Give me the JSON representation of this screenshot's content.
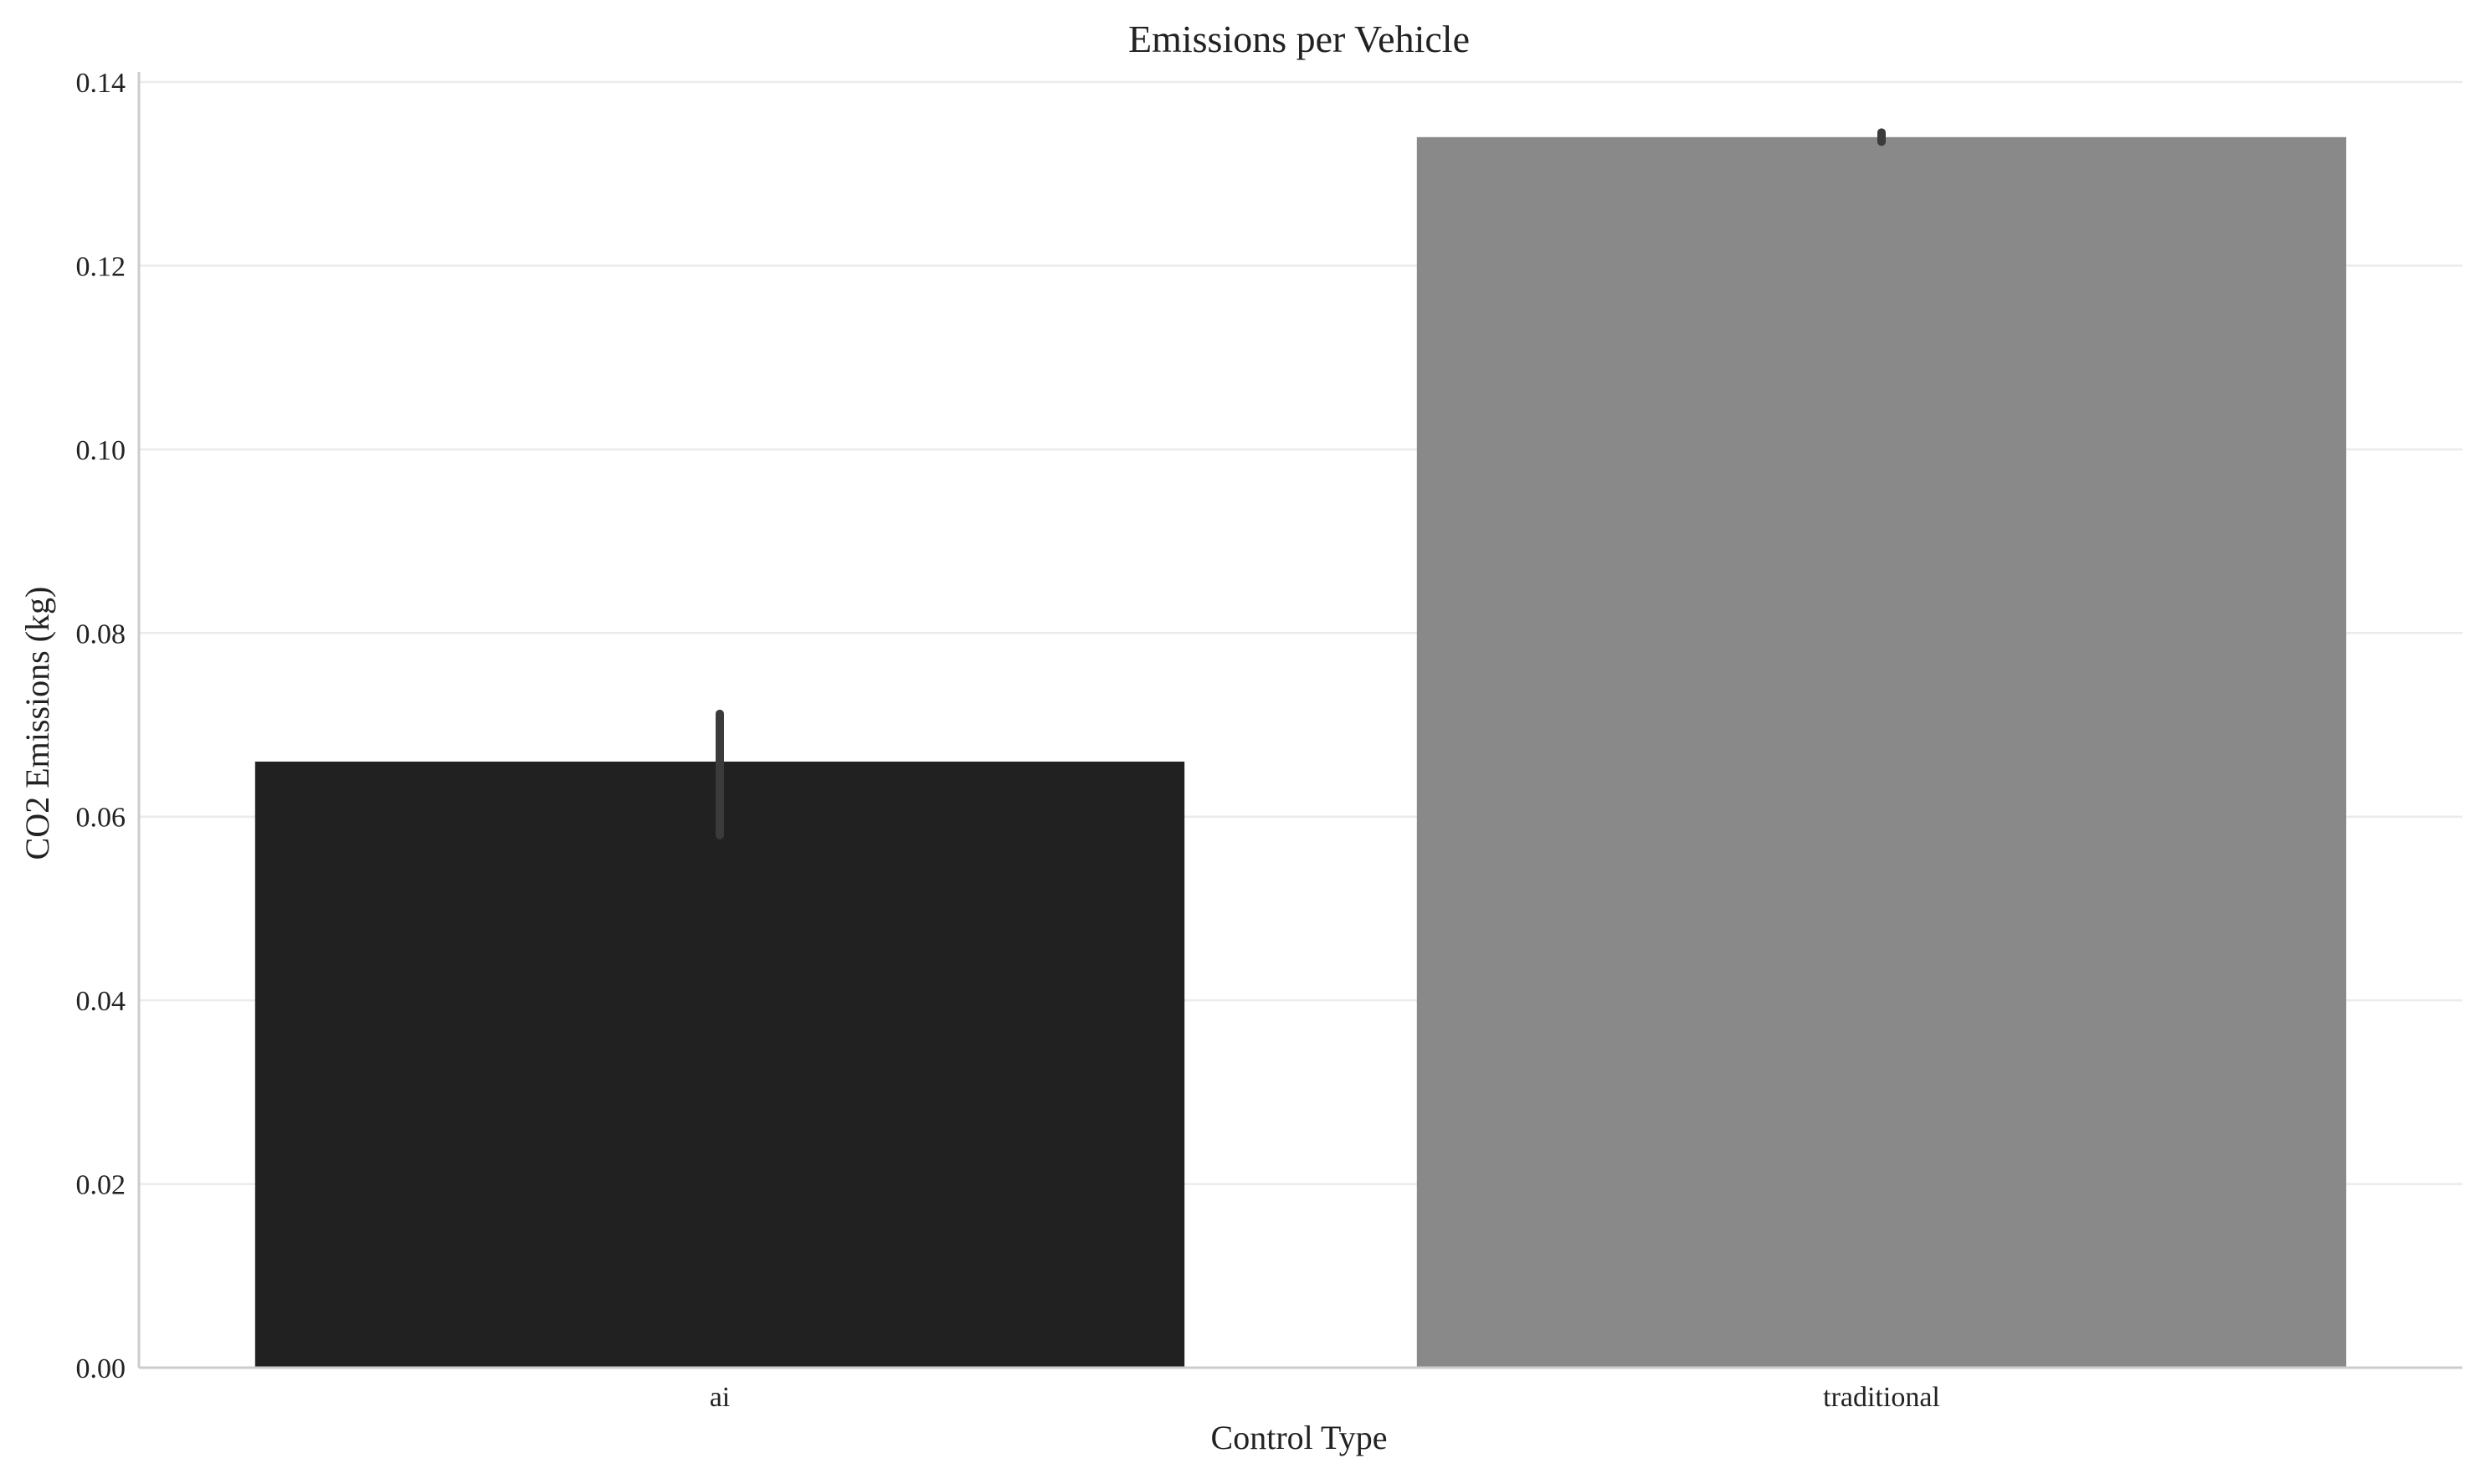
{
  "chart_data": {
    "type": "bar",
    "title": "Emissions per Vehicle",
    "xlabel": "Control Type",
    "ylabel": "CO2 Emissions (kg)",
    "categories": [
      "ai",
      "traditional"
    ],
    "values": [
      0.066,
      0.134
    ],
    "error_bars": [
      {
        "low": 0.058,
        "high": 0.0712
      },
      {
        "low": 0.1335,
        "high": 0.1345
      }
    ],
    "bar_colors": [
      "#212121",
      "#898989"
    ],
    "error_bar_color": "#3b3b3b",
    "ylim": [
      0,
      0.14
    ],
    "yticks": [
      "0.00",
      "0.02",
      "0.04",
      "0.06",
      "0.08",
      "0.10",
      "0.12",
      "0.14"
    ],
    "ytick_values": [
      0,
      0.02,
      0.04,
      0.06,
      0.08,
      0.1,
      0.12,
      0.14
    ],
    "grid": "horizontal",
    "legend": "none"
  }
}
